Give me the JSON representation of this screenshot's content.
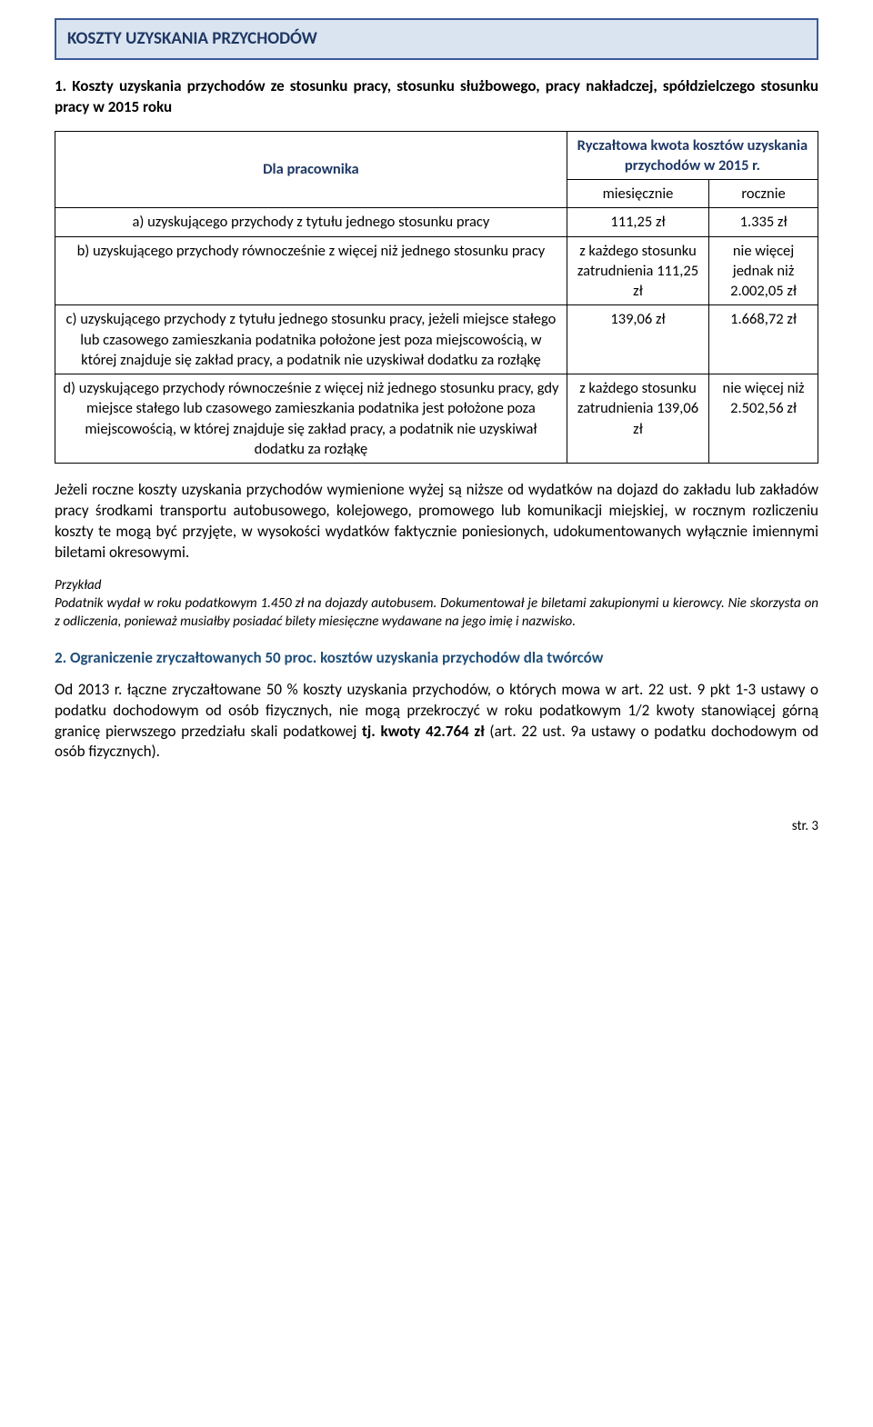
{
  "banner": {
    "title": "KOSZTY UZYSKANIA PRZYCHODÓW"
  },
  "intro": {
    "text": "1. Koszty uzyskania przychodów ze stosunku pracy, stosunku służbowego, pracy nakładczej, spółdzielczego stosunku pracy w 2015 roku"
  },
  "table": {
    "head": {
      "col1": "Dla pracownika",
      "col2": "Ryczałtowa kwota kosztów uzyskania przychodów w 2015 r.",
      "sub_month": "miesięcznie",
      "sub_year": "rocznie"
    },
    "rows": [
      {
        "desc": "a) uzyskującego przychody z tytułu jednego stosunku pracy",
        "month": "111,25 zł",
        "year": "1.335 zł"
      },
      {
        "desc": "b) uzyskującego przychody równocześnie z więcej niż jednego stosunku pracy",
        "month": "z każdego stosunku zatrudnienia 111,25 zł",
        "year": "nie więcej jednak niż 2.002,05 zł"
      },
      {
        "desc": "c) uzyskującego przychody z tytułu jednego stosunku pracy, jeżeli miejsce stałego lub czasowego zamieszkania podatnika położone jest poza miejscowością, w której znajduje się zakład pracy, a podatnik nie uzyskiwał dodatku za rozłąkę",
        "month": "139,06 zł",
        "year": "1.668,72 zł"
      },
      {
        "desc": "d) uzyskującego przychody równocześnie z więcej niż jednego stosunku pracy, gdy miejsce stałego lub czasowego zamieszkania podatnika jest położone poza miejscowością, w której znajduje się zakład pracy, a podatnik nie uzyskiwał dodatku za rozłąkę",
        "month": "z każdego stosunku zatrudnienia 139,06 zł",
        "year": "nie więcej niż 2.502,56 zł"
      }
    ]
  },
  "para1": "Jeżeli roczne koszty uzyskania przychodów wymienione wyżej są niższe od wydatków na dojazd do zakładu lub zakładów pracy środkami transportu autobusowego, kolejowego, promowego lub komunikacji miejskiej, w rocznym rozliczeniu koszty te mogą być przyjęte, w wysokości wydatków faktycznie poniesionych, udokumentowanych wyłącznie imiennymi biletami okresowymi.",
  "example": {
    "label": "Przykład",
    "text": "Podatnik wydał w roku podatkowym 1.450 zł na dojazdy autobusem. Dokumentował je biletami zakupionymi u kierowcy. Nie skorzysta on z odliczenia, ponieważ musiałby posiadać bilety miesięczne wydawane na jego imię i nazwisko."
  },
  "subheading": "2. Ograniczenie zryczałtowanych 50 proc. kosztów uzyskania przychodów dla twórców",
  "para2_a": "Od 2013 r. łączne zryczałtowane 50 % koszty uzyskania przychodów, o których mowa w art. 22 ust. 9 pkt 1-3 ustawy o podatku dochodowym od osób fizycznych, nie mogą przekroczyć w roku podatkowym 1/2 kwoty stanowiącej górną granicę pierwszego przedziału skali podatkowej ",
  "para2_bold": "tj. kwoty  42.764 zł",
  "para2_b": " (art. 22 ust. 9a ustawy o podatku dochodowym od osób fizycznych).",
  "pagenum": "str. 3"
}
